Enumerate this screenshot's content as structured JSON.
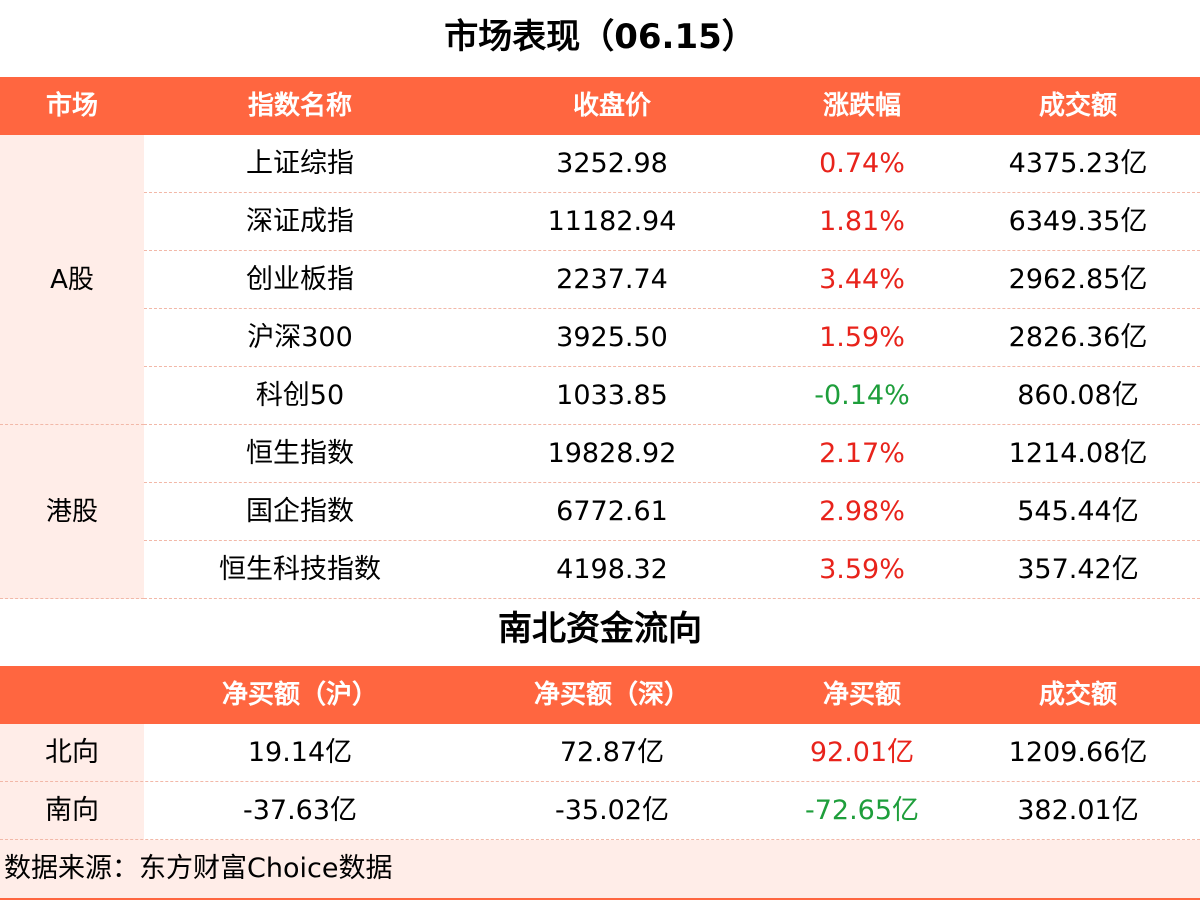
{
  "section1": {
    "title": "市场表现（06.15）",
    "headers": [
      "市场",
      "指数名称",
      "收盘价",
      "涨跌幅",
      "成交额"
    ],
    "groups": [
      {
        "market": "A股",
        "rows": [
          {
            "name": "上证综指",
            "close": "3252.98",
            "change": "0.74%",
            "direction": "up",
            "volume": "4375.23亿"
          },
          {
            "name": "深证成指",
            "close": "11182.94",
            "change": "1.81%",
            "direction": "up",
            "volume": "6349.35亿"
          },
          {
            "name": "创业板指",
            "close": "2237.74",
            "change": "3.44%",
            "direction": "up",
            "volume": "2962.85亿"
          },
          {
            "name": "沪深300",
            "close": "3925.50",
            "change": "1.59%",
            "direction": "up",
            "volume": "2826.36亿"
          },
          {
            "name": "科创50",
            "close": "1033.85",
            "change": "-0.14%",
            "direction": "down",
            "volume": "860.08亿"
          }
        ]
      },
      {
        "market": "港股",
        "rows": [
          {
            "name": "恒生指数",
            "close": "19828.92",
            "change": "2.17%",
            "direction": "up",
            "volume": "1214.08亿"
          },
          {
            "name": "国企指数",
            "close": "6772.61",
            "change": "2.98%",
            "direction": "up",
            "volume": "545.44亿"
          },
          {
            "name": "恒生科技指数",
            "close": "4198.32",
            "change": "3.59%",
            "direction": "up",
            "volume": "357.42亿"
          }
        ]
      }
    ]
  },
  "section2": {
    "title": "南北资金流向",
    "headers": [
      "",
      "净买额（沪）",
      "净买额（深）",
      "净买额",
      "成交额"
    ],
    "rows": [
      {
        "label": "北向",
        "sh": "19.14亿",
        "sz": "72.87亿",
        "net": "92.01亿",
        "direction": "up",
        "volume": "1209.66亿"
      },
      {
        "label": "南向",
        "sh": "-37.63亿",
        "sz": "-35.02亿",
        "net": "-72.65亿",
        "direction": "down",
        "volume": "382.01亿"
      }
    ]
  },
  "footer": {
    "source": "数据来源：东方财富Choice数据"
  },
  "colors": {
    "header_bg": "#FF6640",
    "header_text": "#FFFFFF",
    "light_bg": "#FFEDE8",
    "up": "#E8231B",
    "down": "#1E9E3B"
  }
}
